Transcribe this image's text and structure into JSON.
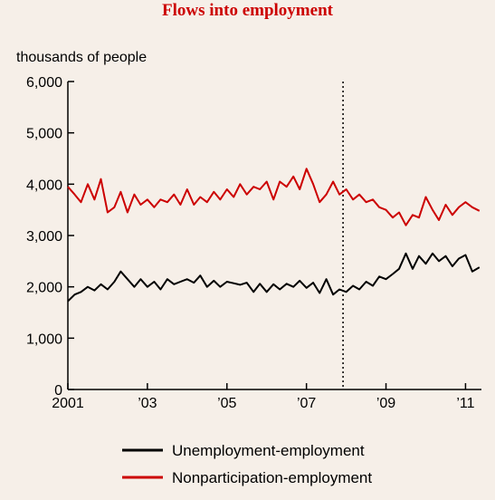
{
  "chart_data": {
    "type": "line",
    "title": "Flows into employment",
    "ylabel": "thousands of people",
    "xlabel": "",
    "ylim": [
      0,
      6000
    ],
    "xlim": [
      2001.0,
      2011.4
    ],
    "y_ticks": [
      0,
      1000,
      2000,
      3000,
      4000,
      5000,
      6000
    ],
    "y_tick_labels": [
      "0",
      "1,000",
      "2,000",
      "3,000",
      "4,000",
      "5,000",
      "6,000"
    ],
    "x_ticks": [
      2001,
      2003,
      2005,
      2007,
      2009,
      2011
    ],
    "x_tick_labels": [
      "2001",
      "’03",
      "’05",
      "’07",
      "’09",
      "’11"
    ],
    "reference_line": {
      "x": 2007.92,
      "style": "dotted"
    },
    "grid": false,
    "legend_position": "bottom",
    "series": [
      {
        "name": "Unemployment-employment",
        "color": "#000000",
        "points": [
          [
            2001.0,
            1720
          ],
          [
            2001.17,
            1850
          ],
          [
            2001.33,
            1900
          ],
          [
            2001.5,
            2000
          ],
          [
            2001.67,
            1930
          ],
          [
            2001.83,
            2050
          ],
          [
            2002.0,
            1950
          ],
          [
            2002.17,
            2100
          ],
          [
            2002.33,
            2300
          ],
          [
            2002.5,
            2150
          ],
          [
            2002.67,
            2000
          ],
          [
            2002.83,
            2150
          ],
          [
            2003.0,
            2000
          ],
          [
            2003.17,
            2100
          ],
          [
            2003.33,
            1950
          ],
          [
            2003.5,
            2150
          ],
          [
            2003.67,
            2050
          ],
          [
            2003.83,
            2100
          ],
          [
            2004.0,
            2150
          ],
          [
            2004.17,
            2080
          ],
          [
            2004.33,
            2220
          ],
          [
            2004.5,
            2000
          ],
          [
            2004.67,
            2120
          ],
          [
            2004.83,
            2000
          ],
          [
            2005.0,
            2100
          ],
          [
            2005.17,
            2070
          ],
          [
            2005.33,
            2040
          ],
          [
            2005.5,
            2080
          ],
          [
            2005.67,
            1900
          ],
          [
            2005.83,
            2060
          ],
          [
            2006.0,
            1900
          ],
          [
            2006.17,
            2050
          ],
          [
            2006.33,
            1950
          ],
          [
            2006.5,
            2060
          ],
          [
            2006.67,
            2000
          ],
          [
            2006.83,
            2120
          ],
          [
            2007.0,
            1980
          ],
          [
            2007.17,
            2080
          ],
          [
            2007.33,
            1880
          ],
          [
            2007.5,
            2150
          ],
          [
            2007.67,
            1850
          ],
          [
            2007.83,
            1950
          ],
          [
            2008.0,
            1900
          ],
          [
            2008.17,
            2020
          ],
          [
            2008.33,
            1950
          ],
          [
            2008.5,
            2100
          ],
          [
            2008.67,
            2020
          ],
          [
            2008.83,
            2200
          ],
          [
            2009.0,
            2150
          ],
          [
            2009.17,
            2250
          ],
          [
            2009.33,
            2350
          ],
          [
            2009.5,
            2650
          ],
          [
            2009.67,
            2350
          ],
          [
            2009.83,
            2600
          ],
          [
            2010.0,
            2450
          ],
          [
            2010.17,
            2650
          ],
          [
            2010.33,
            2500
          ],
          [
            2010.5,
            2600
          ],
          [
            2010.67,
            2400
          ],
          [
            2010.83,
            2550
          ],
          [
            2011.0,
            2620
          ],
          [
            2011.17,
            2300
          ],
          [
            2011.35,
            2380
          ]
        ]
      },
      {
        "name": "Nonparticipation-employment",
        "color": "#cc0000",
        "points": [
          [
            2001.0,
            3950
          ],
          [
            2001.17,
            3800
          ],
          [
            2001.33,
            3650
          ],
          [
            2001.5,
            4000
          ],
          [
            2001.67,
            3700
          ],
          [
            2001.83,
            4100
          ],
          [
            2002.0,
            3450
          ],
          [
            2002.17,
            3550
          ],
          [
            2002.33,
            3850
          ],
          [
            2002.5,
            3450
          ],
          [
            2002.67,
            3800
          ],
          [
            2002.83,
            3600
          ],
          [
            2003.0,
            3700
          ],
          [
            2003.17,
            3550
          ],
          [
            2003.33,
            3700
          ],
          [
            2003.5,
            3650
          ],
          [
            2003.67,
            3800
          ],
          [
            2003.83,
            3600
          ],
          [
            2004.0,
            3900
          ],
          [
            2004.17,
            3600
          ],
          [
            2004.33,
            3750
          ],
          [
            2004.5,
            3650
          ],
          [
            2004.67,
            3850
          ],
          [
            2004.83,
            3700
          ],
          [
            2005.0,
            3900
          ],
          [
            2005.17,
            3750
          ],
          [
            2005.33,
            4000
          ],
          [
            2005.5,
            3800
          ],
          [
            2005.67,
            3950
          ],
          [
            2005.83,
            3900
          ],
          [
            2006.0,
            4050
          ],
          [
            2006.17,
            3700
          ],
          [
            2006.33,
            4050
          ],
          [
            2006.5,
            3950
          ],
          [
            2006.67,
            4150
          ],
          [
            2006.83,
            3900
          ],
          [
            2007.0,
            4300
          ],
          [
            2007.17,
            4000
          ],
          [
            2007.33,
            3650
          ],
          [
            2007.5,
            3800
          ],
          [
            2007.67,
            4050
          ],
          [
            2007.83,
            3800
          ],
          [
            2008.0,
            3900
          ],
          [
            2008.17,
            3700
          ],
          [
            2008.33,
            3800
          ],
          [
            2008.5,
            3650
          ],
          [
            2008.67,
            3700
          ],
          [
            2008.83,
            3550
          ],
          [
            2009.0,
            3500
          ],
          [
            2009.17,
            3350
          ],
          [
            2009.33,
            3450
          ],
          [
            2009.5,
            3200
          ],
          [
            2009.67,
            3400
          ],
          [
            2009.83,
            3350
          ],
          [
            2010.0,
            3750
          ],
          [
            2010.17,
            3500
          ],
          [
            2010.33,
            3300
          ],
          [
            2010.5,
            3600
          ],
          [
            2010.67,
            3400
          ],
          [
            2010.83,
            3550
          ],
          [
            2011.0,
            3650
          ],
          [
            2011.17,
            3550
          ],
          [
            2011.35,
            3480
          ]
        ]
      }
    ]
  }
}
